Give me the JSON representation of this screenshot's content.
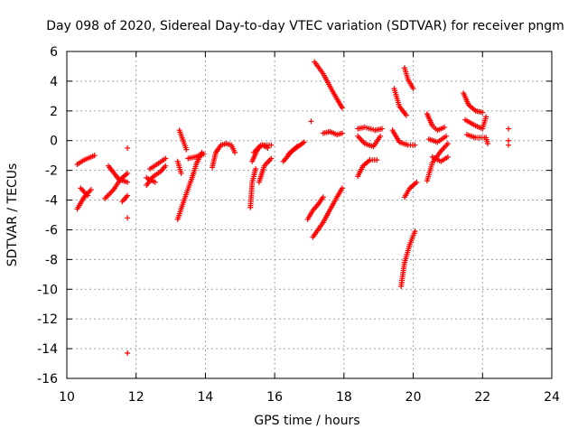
{
  "chart_data": {
    "type": "scatter",
    "title": "Day 098 of 2020, Sidereal Day-to-day VTEC variation (SDTVAR) for receiver pngm",
    "xlabel": "GPS time / hours",
    "ylabel": "SDTVAR / TECUs",
    "xlim": [
      10,
      24
    ],
    "ylim": [
      -16,
      6
    ],
    "xticks": [
      10,
      12,
      14,
      16,
      18,
      20,
      22,
      24
    ],
    "yticks": [
      -16,
      -14,
      -12,
      -10,
      -8,
      -6,
      -4,
      -2,
      0,
      2,
      4,
      6
    ],
    "grid": true,
    "marker": "+",
    "colors": {
      "points": "#ff0000",
      "grid": "#a0a0a0",
      "axes": "#000000"
    },
    "segments": [
      [
        [
          10.3,
          -4.6
        ],
        [
          10.5,
          -3.8
        ],
        [
          10.7,
          -3.3
        ]
      ],
      [
        [
          10.3,
          -1.6
        ],
        [
          10.5,
          -1.3
        ],
        [
          10.8,
          -1.0
        ]
      ],
      [
        [
          10.4,
          -3.2
        ],
        [
          10.6,
          -3.7
        ]
      ],
      [
        [
          11.1,
          -3.9
        ],
        [
          11.35,
          -3.3
        ],
        [
          11.55,
          -2.6
        ],
        [
          11.75,
          -2.2
        ]
      ],
      [
        [
          11.2,
          -1.7
        ],
        [
          11.5,
          -2.6
        ],
        [
          11.75,
          -2.8
        ]
      ],
      [
        [
          11.6,
          -4.1
        ],
        [
          11.75,
          -3.7
        ]
      ],
      [
        [
          12.3,
          -3.0
        ],
        [
          12.5,
          -2.4
        ],
        [
          12.7,
          -2.1
        ],
        [
          12.85,
          -1.7
        ]
      ],
      [
        [
          12.4,
          -1.9
        ],
        [
          12.6,
          -1.6
        ],
        [
          12.85,
          -1.2
        ]
      ],
      [
        [
          12.3,
          -2.5
        ],
        [
          12.55,
          -2.8
        ]
      ],
      [
        [
          13.2,
          -5.3
        ],
        [
          13.4,
          -3.9
        ],
        [
          13.6,
          -2.6
        ],
        [
          13.75,
          -1.5
        ],
        [
          13.9,
          -0.8
        ]
      ],
      [
        [
          13.25,
          0.7
        ],
        [
          13.45,
          -0.6
        ]
      ],
      [
        [
          13.5,
          -1.2
        ],
        [
          13.7,
          -1.1
        ],
        [
          13.95,
          -0.9
        ]
      ],
      [
        [
          13.2,
          -1.4
        ],
        [
          13.3,
          -2.2
        ]
      ],
      [
        [
          14.2,
          -1.8
        ],
        [
          14.3,
          -0.8
        ],
        [
          14.45,
          -0.3
        ],
        [
          14.6,
          -0.2
        ],
        [
          14.75,
          -0.3
        ],
        [
          14.85,
          -0.8
        ]
      ],
      [
        [
          15.3,
          -4.5
        ],
        [
          15.35,
          -2.8
        ],
        [
          15.45,
          -1.9
        ]
      ],
      [
        [
          15.35,
          -1.4
        ],
        [
          15.5,
          -0.6
        ],
        [
          15.65,
          -0.3
        ],
        [
          15.8,
          -0.5
        ]
      ],
      [
        [
          15.55,
          -2.8
        ],
        [
          15.7,
          -1.7
        ],
        [
          15.9,
          -1.2
        ]
      ],
      [
        [
          15.4,
          -0.8
        ],
        [
          15.6,
          -0.3
        ],
        [
          15.9,
          -0.3
        ]
      ],
      [
        [
          16.25,
          -1.4
        ],
        [
          16.5,
          -0.7
        ],
        [
          16.85,
          -0.1
        ]
      ],
      [
        [
          16.4,
          -0.9
        ],
        [
          16.65,
          -0.4
        ]
      ],
      [
        [
          16.95,
          -5.3
        ],
        [
          17.1,
          -4.7
        ],
        [
          17.25,
          -4.3
        ],
        [
          17.4,
          -3.8
        ]
      ],
      [
        [
          17.1,
          -6.5
        ],
        [
          17.4,
          -5.5
        ],
        [
          17.75,
          -4.0
        ],
        [
          17.95,
          -3.2
        ]
      ],
      [
        [
          17.15,
          5.3
        ],
        [
          17.4,
          4.5
        ],
        [
          17.7,
          3.2
        ],
        [
          17.95,
          2.2
        ]
      ],
      [
        [
          17.4,
          0.5
        ],
        [
          17.6,
          0.6
        ],
        [
          17.8,
          0.4
        ],
        [
          17.95,
          0.5
        ]
      ],
      [
        [
          18.4,
          -2.4
        ],
        [
          18.55,
          -1.7
        ],
        [
          18.75,
          -1.3
        ],
        [
          18.95,
          -1.3
        ]
      ],
      [
        [
          18.4,
          0.8
        ],
        [
          18.6,
          0.9
        ],
        [
          18.9,
          0.7
        ],
        [
          19.1,
          0.8
        ]
      ],
      [
        [
          18.4,
          0.3
        ],
        [
          18.6,
          -0.2
        ],
        [
          18.85,
          -0.4
        ],
        [
          19.05,
          0.3
        ]
      ],
      [
        [
          19.4,
          0.7
        ],
        [
          19.6,
          -0.1
        ],
        [
          19.85,
          -0.3
        ],
        [
          20.05,
          -0.3
        ]
      ],
      [
        [
          19.45,
          3.5
        ],
        [
          19.6,
          2.3
        ],
        [
          19.8,
          1.7
        ]
      ],
      [
        [
          19.75,
          4.9
        ],
        [
          19.85,
          4.1
        ],
        [
          20.0,
          3.5
        ]
      ],
      [
        [
          19.75,
          -3.8
        ],
        [
          19.9,
          -3.2
        ],
        [
          20.1,
          -2.8
        ]
      ],
      [
        [
          19.65,
          -9.8
        ],
        [
          19.75,
          -8.2
        ],
        [
          19.9,
          -7.0
        ],
        [
          20.05,
          -6.1
        ]
      ],
      [
        [
          20.4,
          -2.7
        ],
        [
          20.55,
          -1.5
        ],
        [
          20.8,
          -0.7
        ],
        [
          21.0,
          -0.2
        ]
      ],
      [
        [
          20.4,
          1.8
        ],
        [
          20.55,
          1.0
        ],
        [
          20.7,
          0.7
        ],
        [
          20.9,
          0.9
        ]
      ],
      [
        [
          20.55,
          -1.1
        ],
        [
          20.8,
          -1.4
        ],
        [
          21.0,
          -1.1
        ]
      ],
      [
        [
          20.45,
          0.1
        ],
        [
          20.7,
          -0.1
        ],
        [
          20.95,
          0.3
        ]
      ],
      [
        [
          21.45,
          3.2
        ],
        [
          21.6,
          2.4
        ],
        [
          21.8,
          2.0
        ],
        [
          22.0,
          1.9
        ]
      ],
      [
        [
          21.5,
          1.4
        ],
        [
          21.8,
          1.0
        ],
        [
          22.0,
          0.8
        ],
        [
          22.1,
          1.6
        ]
      ],
      [
        [
          21.55,
          0.4
        ],
        [
          21.8,
          0.2
        ],
        [
          22.05,
          0.2
        ]
      ],
      [
        [
          22.1,
          0.2
        ],
        [
          22.15,
          -0.2
        ]
      ]
    ],
    "points": [
      [
        11.75,
        -14.3
      ],
      [
        11.75,
        -0.5
      ],
      [
        11.75,
        -5.2
      ],
      [
        17.05,
        1.3
      ],
      [
        22.75,
        0.8
      ],
      [
        22.75,
        0.0
      ],
      [
        22.75,
        -0.3
      ]
    ]
  }
}
